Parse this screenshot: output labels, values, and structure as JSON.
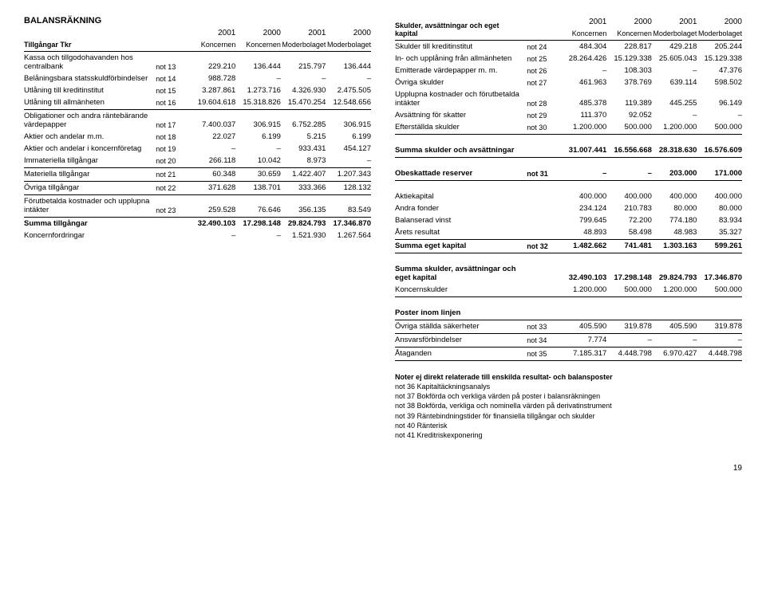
{
  "pageNumber": "19",
  "left": {
    "title": "BALANSRÄKNING",
    "subtitle": "Tillgångar Tkr",
    "cols": [
      {
        "y": "2001",
        "s": "Koncernen"
      },
      {
        "y": "2000",
        "s": "Koncernen"
      },
      {
        "y": "2001",
        "s": "Moderbolaget"
      },
      {
        "y": "2000",
        "s": "Moderbolaget"
      }
    ],
    "rows": [
      {
        "label": "Kassa och tillgodohavanden hos centralbank",
        "note": "not 13",
        "v": [
          "229.210",
          "136.444",
          "215.797",
          "136.444"
        ]
      },
      {
        "label": "Belåningsbara statsskuldförbindelser",
        "note": "not 14",
        "v": [
          "988.728",
          "–",
          "–",
          "–"
        ]
      },
      {
        "label": "Utlåning till kreditinstitut",
        "note": "not 15",
        "v": [
          "3.287.861",
          "1.273.716",
          "4.326.930",
          "2.475.505"
        ]
      },
      {
        "label": "Utlåning till allmänheten",
        "note": "not 16",
        "v": [
          "19.604.618",
          "15.318.826",
          "15.470.254",
          "12.548.656"
        ],
        "divAfter": true
      },
      {
        "label": "Obligationer och andra räntebärande värdepapper",
        "note": "not 17",
        "v": [
          "7.400.037",
          "306.915",
          "6.752.285",
          "306.915"
        ]
      },
      {
        "label": "Aktier och andelar m.m.",
        "note": "not 18",
        "v": [
          "22.027",
          "6.199",
          "5.215",
          "6.199"
        ]
      },
      {
        "label": "Aktier och andelar i koncernföretag",
        "note": "not 19",
        "v": [
          "–",
          "–",
          "933.431",
          "454.127"
        ]
      },
      {
        "label": "Immateriella tillgångar",
        "note": "not 20",
        "v": [
          "266.118",
          "10.042",
          "8.973",
          "–"
        ],
        "divAfter": true
      },
      {
        "label": "Materiella tillgångar",
        "note": "not 21",
        "v": [
          "60.348",
          "30.659",
          "1.422.407",
          "1.207.343"
        ],
        "divAfter": true
      },
      {
        "label": "Övriga tillgångar",
        "note": "not 22",
        "v": [
          "371.628",
          "138.701",
          "333.366",
          "128.132"
        ],
        "divAfter": true
      },
      {
        "label": "Förutbetalda kostnader och upplupna intäkter",
        "note": "not 23",
        "v": [
          "259.528",
          "76.646",
          "356.135",
          "83.549"
        ],
        "divAfter": true
      },
      {
        "label": "Summa tillgångar",
        "note": "",
        "v": [
          "32.490.103",
          "17.298.148",
          "29.824.793",
          "17.346.870"
        ],
        "bold": true
      },
      {
        "label": "Koncernfordringar",
        "note": "",
        "v": [
          "–",
          "–",
          "1.521.930",
          "1.267.564"
        ]
      }
    ]
  },
  "right": {
    "subtitle": "Skulder, avsättningar och eget kapital",
    "cols": [
      {
        "y": "2001",
        "s": "Koncernen"
      },
      {
        "y": "2000",
        "s": "Koncernen"
      },
      {
        "y": "2001",
        "s": "Moderbolaget"
      },
      {
        "y": "2000",
        "s": "Moderbolaget"
      }
    ],
    "rows1": [
      {
        "label": "Skulder till kreditinstitut",
        "note": "not 24",
        "v": [
          "484.304",
          "228.817",
          "429.218",
          "205.244"
        ]
      },
      {
        "label": "In- och upplåning från allmänheten",
        "note": "not 25",
        "v": [
          "28.264.426",
          "15.129.338",
          "25.605.043",
          "15.129.338"
        ]
      },
      {
        "label": "Emitterade värdepapper m. m.",
        "note": "not 26",
        "v": [
          "–",
          "108.303",
          "–",
          "47.376"
        ]
      },
      {
        "label": "Övriga skulder",
        "note": "not 27",
        "v": [
          "461.963",
          "378.769",
          "639.114",
          "598.502"
        ]
      },
      {
        "label": "Upplupna kostnader och förutbetalda intäkter",
        "note": "not 28",
        "v": [
          "485.378",
          "119.389",
          "445.255",
          "96.149"
        ]
      },
      {
        "label": "Avsättning för skatter",
        "note": "not 29",
        "v": [
          "111.370",
          "92.052",
          "–",
          "–"
        ]
      },
      {
        "label": "Efterställda skulder",
        "note": "not 30",
        "v": [
          "1.200.000",
          "500.000",
          "1.200.000",
          "500.000"
        ],
        "divAfter": true
      },
      {
        "label": "Summa skulder och avsättningar",
        "note": "",
        "v": [
          "31.007.441",
          "16.556.668",
          "28.318.630",
          "16.576.609"
        ],
        "bold": true,
        "gapBefore": true,
        "divAfter": true
      },
      {
        "label": "Obeskattade reserver",
        "note": "not 31",
        "v": [
          "–",
          "–",
          "203.000",
          "171.000"
        ],
        "bold": true,
        "gapBefore": true,
        "divAfter": true
      },
      {
        "label": "Aktiekapital",
        "note": "",
        "v": [
          "400.000",
          "400.000",
          "400.000",
          "400.000"
        ],
        "gapBefore": true
      },
      {
        "label": "Andra fonder",
        "note": "",
        "v": [
          "234.124",
          "210.783",
          "80.000",
          "80.000"
        ]
      },
      {
        "label": "Balanserad vinst",
        "note": "",
        "v": [
          "799.645",
          "72.200",
          "774.180",
          "83.934"
        ]
      },
      {
        "label": "Årets resultat",
        "note": "",
        "v": [
          "48.893",
          "58.498",
          "48.983",
          "35.327"
        ],
        "divAfter": true
      },
      {
        "label": "Summa eget kapital",
        "note": "not 32",
        "v": [
          "1.482.662",
          "741.481",
          "1.303.163",
          "599.261"
        ],
        "bold": true,
        "divAfter": true
      },
      {
        "label": "Summa skulder, avsättningar och eget kapital",
        "note": "",
        "v": [
          "32.490.103",
          "17.298.148",
          "29.824.793",
          "17.346.870"
        ],
        "bold": true,
        "gapBefore": true
      },
      {
        "label": "Koncernskulder",
        "note": "",
        "v": [
          "1.200.000",
          "500.000",
          "1.200.000",
          "500.000"
        ],
        "divAfter": true
      }
    ],
    "posterTitle": "Poster inom linjen",
    "rows2": [
      {
        "label": "Övriga ställda säkerheter",
        "note": "not 33",
        "v": [
          "405.590",
          "319.878",
          "405.590",
          "319.878"
        ],
        "divAfter": true
      },
      {
        "label": "Ansvarsförbindelser",
        "note": "not 34",
        "v": [
          "7.774",
          "–",
          "–",
          "–"
        ],
        "divAfter": true
      },
      {
        "label": "Åtaganden",
        "note": "not 35",
        "v": [
          "7.185.317",
          "4.448.798",
          "6.970.427",
          "4.448.798"
        ],
        "divAfter": true
      }
    ],
    "notesTitle": "Noter ej direkt relaterade till enskilda resultat- och balansposter",
    "notesLines": [
      "not 36 Kapitaltäckningsanalys",
      "not 37 Bokförda och verkliga värden på poster i balansräkningen",
      "not 38 Bokförda, verkliga och nominella värden på derivatinstrument",
      "not 39 Räntebindningstider för finansiella tillgångar och skulder",
      "not 40 Ränterisk",
      "not 41 Kreditriskexponering"
    ]
  }
}
